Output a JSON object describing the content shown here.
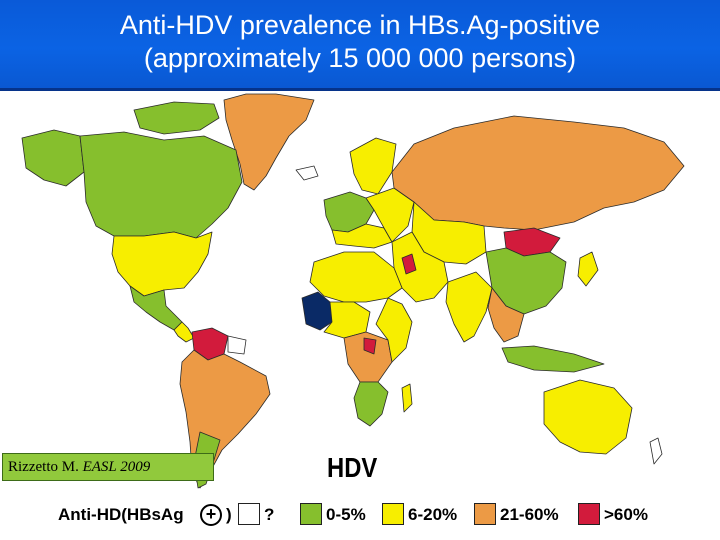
{
  "title": {
    "line1": "Anti-HDV prevalence in HBs.Ag-positive",
    "line2": "(approximately 15 000 000 persons)"
  },
  "citation": {
    "author": "Rizzetto M. ",
    "journal": "EASL 2009"
  },
  "map_label": "HDV",
  "legend": {
    "prefix": "Anti-HD(HBsAg",
    "plus": "+",
    "close_paren": ")",
    "items": [
      {
        "label": "?",
        "color": "#ffffff"
      },
      {
        "label": "0-5%",
        "color": "#86bf2d"
      },
      {
        "label": "6-20%",
        "color": "#f7ee00"
      },
      {
        "label": "21-60%",
        "color": "#ec9a45"
      },
      {
        "label": ">60%",
        "color": "#d21b3c"
      }
    ]
  },
  "colors": {
    "title_bg": "#0b63e4",
    "unknown": "#ffffff",
    "low": "#86bf2d",
    "moderate": "#f7ee00",
    "high": "#ec9a45",
    "very_high": "#d21b3c",
    "darkest": "#0a2a66"
  }
}
